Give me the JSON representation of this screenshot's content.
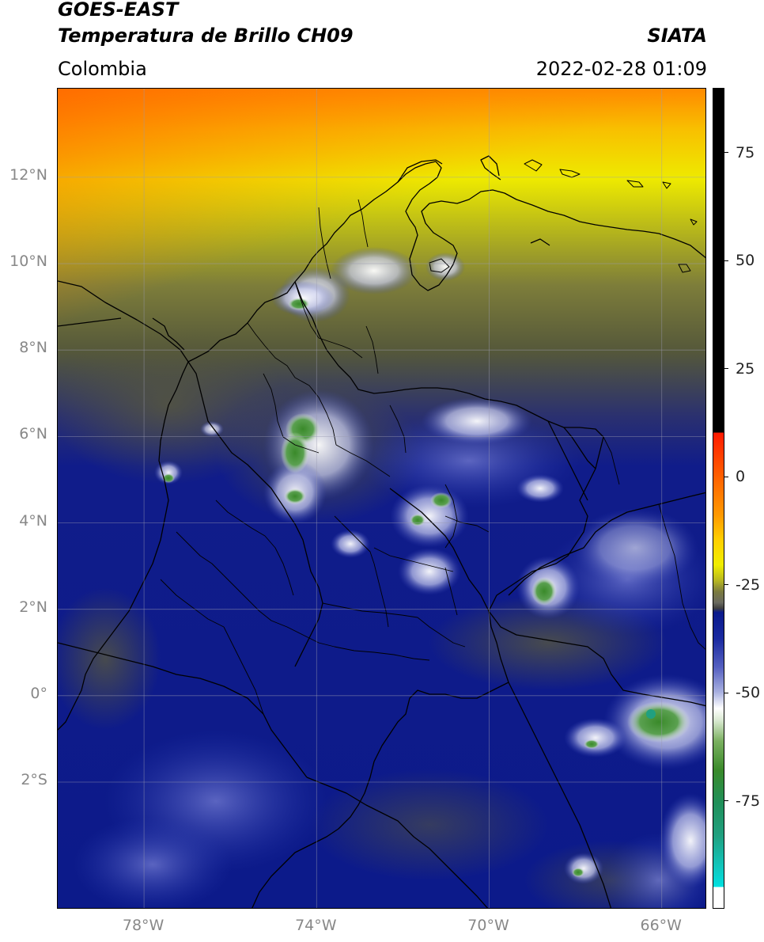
{
  "header": {
    "satellite": "GOES-EAST",
    "product": "Temperatura de Brillo CH09",
    "institution": "SIATA",
    "region": "Colombia",
    "datetime": "2022-02-28 01:09"
  },
  "map": {
    "lat_range": [
      -4.95,
      14.05
    ],
    "lon_range": [
      -80.0,
      -64.95
    ],
    "lat_ticks": [
      {
        "value": 12,
        "label": "12°N"
      },
      {
        "value": 10,
        "label": "10°N"
      },
      {
        "value": 8,
        "label": "8°N"
      },
      {
        "value": 6,
        "label": "6°N"
      },
      {
        "value": 4,
        "label": "4°N"
      },
      {
        "value": 2,
        "label": "2°N"
      },
      {
        "value": 0,
        "label": "0°"
      },
      {
        "value": -2,
        "label": "2°S"
      }
    ],
    "lon_ticks": [
      {
        "value": -78,
        "label": "78°W"
      },
      {
        "value": -74,
        "label": "74°W"
      },
      {
        "value": -70,
        "label": "70°W"
      },
      {
        "value": -66,
        "label": "66°W"
      }
    ],
    "gridlines": true
  },
  "colorbar": {
    "range": [
      -100,
      90
    ],
    "ticks": [
      {
        "value": 75,
        "label": "75"
      },
      {
        "value": 50,
        "label": "50"
      },
      {
        "value": 25,
        "label": "25"
      },
      {
        "value": 0,
        "label": "0"
      },
      {
        "value": -25,
        "label": "-25"
      },
      {
        "value": -50,
        "label": "-50"
      },
      {
        "value": -75,
        "label": "-75"
      }
    ],
    "colors": {
      "black": "#000000",
      "red": "#ff1a00",
      "orange": "#ff8c00",
      "yellow": "#f0ee00",
      "olive": "#8a8a2a",
      "gray_olive": "#55553a",
      "navy": "#0a1a8c",
      "blue": "#2a3cb0",
      "light_blue": "#b8bce8",
      "white": "#ffffff",
      "green": "#3a8a2a",
      "teal": "#20a080",
      "cyan": "#00d8d8"
    }
  }
}
